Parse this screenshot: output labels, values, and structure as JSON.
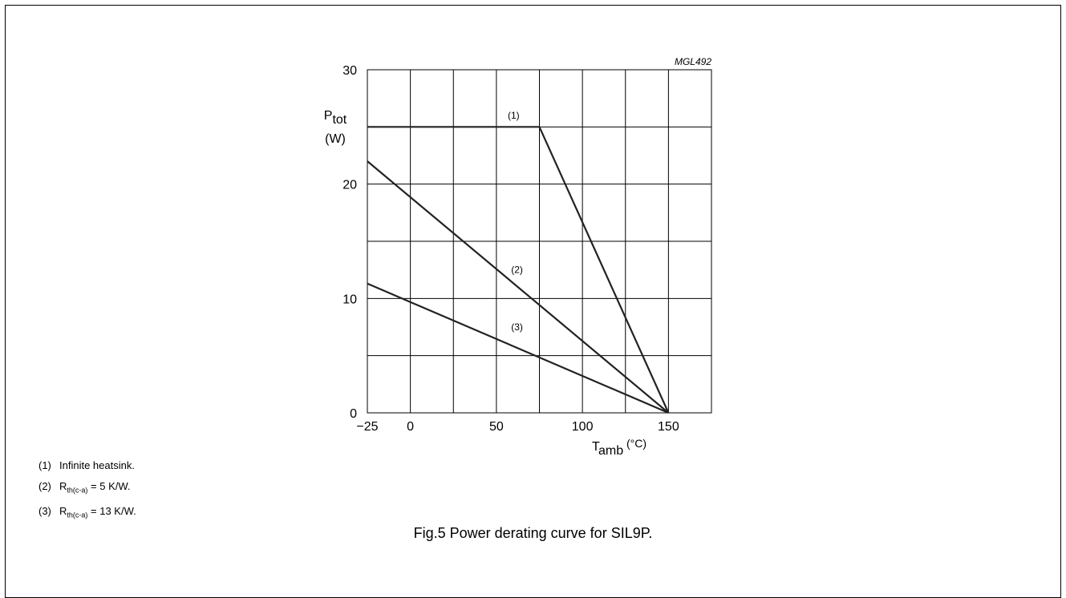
{
  "figure": {
    "code": "MGL492",
    "caption": "Fig.5  Power derating curve for SIL9P."
  },
  "notes": [
    {
      "num": "(1)",
      "pre": "Infinite heatsink.",
      "sub": "",
      "post": ""
    },
    {
      "num": "(2)",
      "pre": "R",
      "sub": "th(c-a)",
      "post": " = 5 K/W."
    },
    {
      "num": "(3)",
      "pre": "R",
      "sub": "th(c-a)",
      "post": " = 13 K/W."
    }
  ],
  "chart_data": {
    "type": "line",
    "xlim": [
      -25,
      175
    ],
    "ylim": [
      0,
      30
    ],
    "grid": true,
    "x_ticks": [
      -25,
      0,
      50,
      100,
      150
    ],
    "x_tick_labels": [
      "−25",
      "0",
      "50",
      "100",
      "150"
    ],
    "y_ticks": [
      0,
      10,
      20,
      30
    ],
    "x_grid": [
      0,
      25,
      50,
      75,
      100,
      125,
      150
    ],
    "y_grid": [
      5,
      10,
      15,
      20,
      25
    ],
    "xlabel": {
      "main": "T",
      "sub": "amb",
      "unit": " (°C)"
    },
    "ylabel": {
      "main": "P",
      "sub": "tot",
      "unit": "(W)"
    },
    "series": [
      {
        "label": "(1)",
        "x": [
          -25,
          75,
          150
        ],
        "y": [
          25,
          25,
          0
        ],
        "label_at": [
          60,
          26
        ]
      },
      {
        "label": "(2)",
        "x": [
          -25,
          150
        ],
        "y": [
          22,
          0
        ],
        "label_at": [
          62,
          12.5
        ]
      },
      {
        "label": "(3)",
        "x": [
          -25,
          150
        ],
        "y": [
          11.3,
          0
        ],
        "label_at": [
          62,
          7.5
        ]
      }
    ]
  }
}
